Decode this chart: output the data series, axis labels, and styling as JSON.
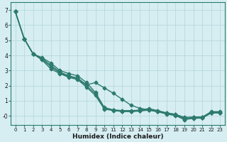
{
  "xlabel": "Humidex (Indice chaleur)",
  "ylabel": "",
  "bg_color": "#d6eef2",
  "grid_color": "#b8d8de",
  "line_color": "#2d7a6e",
  "xlim": [
    -0.5,
    23.5
  ],
  "ylim": [
    -0.6,
    7.5
  ],
  "xticks": [
    0,
    1,
    2,
    3,
    4,
    5,
    6,
    7,
    8,
    9,
    10,
    11,
    12,
    13,
    14,
    15,
    16,
    17,
    18,
    19,
    20,
    21,
    22,
    23
  ],
  "yticks": [
    0,
    1,
    2,
    3,
    4,
    5,
    6,
    7
  ],
  "ytick_labels": [
    "-0",
    "1",
    "2",
    "3",
    "4",
    "5",
    "6",
    "7"
  ],
  "line1": [
    6.9,
    5.1,
    4.1,
    3.85,
    3.5,
    3.0,
    2.8,
    2.65,
    2.2,
    1.55,
    0.55,
    0.4,
    0.35,
    0.35,
    0.38,
    0.48,
    0.35,
    0.2,
    0.1,
    -0.15,
    -0.1,
    -0.1,
    0.28,
    0.28
  ],
  "line2": [
    6.9,
    5.1,
    4.1,
    3.8,
    3.35,
    2.9,
    2.65,
    2.5,
    2.05,
    2.2,
    1.85,
    1.5,
    1.1,
    0.7,
    0.5,
    0.4,
    0.28,
    0.18,
    0.1,
    -0.1,
    -0.08,
    -0.07,
    0.25,
    0.25
  ],
  "line3": [
    6.9,
    5.1,
    4.1,
    3.75,
    3.25,
    2.85,
    2.6,
    2.45,
    2.0,
    1.45,
    0.5,
    0.37,
    0.31,
    0.3,
    0.35,
    0.42,
    0.3,
    0.15,
    0.05,
    -0.22,
    -0.14,
    -0.13,
    0.22,
    0.22
  ],
  "line4": [
    6.9,
    5.1,
    4.1,
    3.7,
    3.1,
    2.8,
    2.55,
    2.4,
    1.9,
    1.35,
    0.45,
    0.35,
    0.29,
    0.28,
    0.32,
    0.38,
    0.27,
    0.12,
    0.02,
    -0.25,
    -0.16,
    -0.15,
    0.19,
    0.19
  ],
  "marker": "D",
  "marker_size": 2.5,
  "line_width": 1.0
}
